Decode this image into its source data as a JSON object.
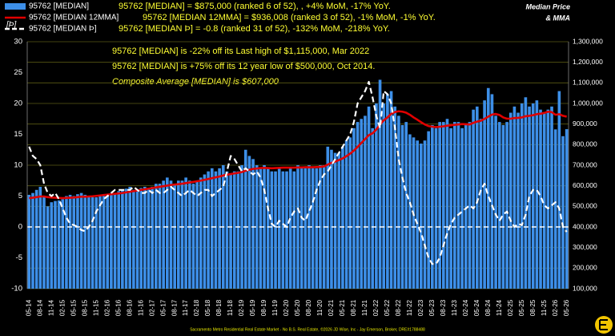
{
  "chart_data": {
    "type": "bar",
    "title": [
      "Median Price",
      "& MMA"
    ],
    "y_label": "[Þ]",
    "series_notes": [
      "95762 [MEDIAN] = $875,000 (ranked 6 of 52), , +4% MoM, -17% YoY.",
      "95762 [MEDIAN 12MMA] = $936,008 (ranked 3 of 52),  -1% MoM, -1% YoY.",
      "95762 [MEDIAN Þ] = -0.8 (ranked 31 of 52), -132% MoM, -218% YoY."
    ],
    "annotations": [
      "95762 [MEDIAN] is -22% off its Last high of $1,115,000, Mar 2022",
      "95762 [MEDIAN] is +75% off its 12 year low of $500,000, Oct 2014.",
      "Composite Average [MEDIAN] is $607,000"
    ],
    "footer": "Sacramento Metro Residential Real Estate Market - No B.S. Real Estate, ©2026 JD Wise, Inc - Jay Emerson, Broker, DRE#1788488",
    "categories": [
      "05-14",
      null,
      null,
      "08-14",
      null,
      null,
      "11-14",
      null,
      null,
      "02-15",
      null,
      null,
      "05-15",
      null,
      null,
      "08-15",
      null,
      null,
      "11-15",
      null,
      null,
      "02-16",
      null,
      null,
      "05-16",
      null,
      null,
      "08-16",
      null,
      null,
      "11-16",
      null,
      null,
      "02-17",
      null,
      null,
      "05-17",
      null,
      null,
      "08-17",
      null,
      null,
      "11-17",
      null,
      null,
      "02-18",
      null,
      null,
      "05-18",
      null,
      null,
      "08-18",
      null,
      null,
      "11-18",
      null,
      null,
      "02-19",
      null,
      null,
      "05-19",
      null,
      null,
      "08-19",
      null,
      null,
      "11-19",
      null,
      null,
      "02-20",
      null,
      null,
      "05-20",
      null,
      null,
      "08-20",
      null,
      null,
      "11-20",
      null,
      null,
      "02-21",
      null,
      null,
      "05-21",
      null,
      null,
      "08-21",
      null,
      null,
      "11-21",
      null,
      null,
      "02-22",
      null,
      null,
      "05-22",
      null,
      null,
      "08-22",
      null,
      null,
      "11-22",
      null,
      null,
      "02-23",
      null,
      null,
      "05-23",
      null,
      null,
      "08-23",
      null,
      null,
      "11-23",
      null,
      null,
      "02-24",
      null,
      null,
      "05-24",
      null,
      null,
      "08-24",
      null,
      null,
      "11-24",
      null,
      null,
      "02-25",
      null,
      null,
      "05-25",
      null,
      null,
      "08-25",
      null,
      null,
      "11-25",
      null,
      null,
      "02-26",
      null,
      null,
      "05-26"
    ],
    "series": [
      {
        "name": "95762 [MEDIAN]",
        "type": "bar",
        "axis": "y2",
        "color": "#3d8fe8",
        "values": [
          556000,
          565000,
          580000,
          595000,
          550000,
          500000,
          520000,
          526000,
          529000,
          535000,
          550000,
          556000,
          550000,
          559000,
          565000,
          556000,
          550000,
          544000,
          544000,
          550000,
          550000,
          559000,
          565000,
          565000,
          574000,
          580000,
          586000,
          595000,
          580000,
          580000,
          589000,
          595000,
          589000,
          595000,
          610000,
          610000,
          625000,
          640000,
          625000,
          610000,
          625000,
          625000,
          640000,
          625000,
          610000,
          625000,
          640000,
          655000,
          670000,
          685000,
          670000,
          685000,
          700000,
          670000,
          655000,
          670000,
          670000,
          700000,
          775000,
          745000,
          730000,
          700000,
          685000,
          700000,
          685000,
          670000,
          670000,
          685000,
          670000,
          670000,
          685000,
          670000,
          700000,
          685000,
          685000,
          700000,
          685000,
          685000,
          700000,
          700000,
          790000,
          775000,
          760000,
          760000,
          790000,
          820000,
          835000,
          880000,
          910000,
          925000,
          940000,
          985000,
          880000,
          1000000,
          1115000,
          1000000,
          1045000,
          1060000,
          985000,
          940000,
          895000,
          910000,
          850000,
          835000,
          820000,
          805000,
          820000,
          865000,
          895000,
          880000,
          910000,
          910000,
          925000,
          880000,
          910000,
          910000,
          880000,
          895000,
          910000,
          970000,
          985000,
          925000,
          1015000,
          1075000,
          1045000,
          940000,
          910000,
          895000,
          910000,
          955000,
          985000,
          955000,
          1000000,
          1030000,
          985000,
          1000000,
          1015000,
          970000,
          955000,
          970000,
          985000,
          874000,
          1060000,
          841000,
          875000
        ]
      },
      {
        "name": "95762 [MEDIAN 12MMA]",
        "type": "line",
        "axis": "y2",
        "color": "#e00000",
        "values": [
          540000,
          542000,
          545000,
          548000,
          548000,
          545000,
          543000,
          542000,
          541000,
          540000,
          541000,
          542000,
          543000,
          545000,
          547000,
          547000,
          548000,
          549000,
          551000,
          553000,
          555000,
          557000,
          559000,
          561000,
          563000,
          565000,
          568000,
          571000,
          574000,
          577000,
          580000,
          583000,
          586000,
          589000,
          592000,
          595000,
          598000,
          601000,
          604000,
          606000,
          608000,
          610000,
          613000,
          616000,
          619000,
          622000,
          625000,
          629000,
          633000,
          637000,
          641000,
          645000,
          650000,
          654000,
          657000,
          660000,
          663000,
          667000,
          673000,
          678000,
          682000,
          684000,
          686000,
          687000,
          686000,
          685000,
          686000,
          687000,
          688000,
          688000,
          688000,
          688000,
          689000,
          689000,
          690000,
          690000,
          690000,
          691000,
          692000,
          694000,
          703000,
          711000,
          718000,
          725000,
          733000,
          744000,
          756000,
          771000,
          789000,
          808000,
          827000,
          846000,
          855000,
          873000,
          898000,
          918000,
          932000,
          950000,
          958000,
          962000,
          960000,
          955000,
          945000,
          932000,
          921000,
          909000,
          898000,
          890000,
          887000,
          885000,
          887000,
          889000,
          892000,
          894000,
          896000,
          898000,
          900000,
          899000,
          898000,
          906000,
          912000,
          916000,
          925000,
          936000,
          946000,
          949000,
          944000,
          932000,
          926000,
          926000,
          929000,
          930000,
          932000,
          938000,
          940000,
          943000,
          948000,
          950000,
          954000,
          960000,
          958000,
          945000,
          948000,
          940000,
          936008
        ]
      },
      {
        "name": "95762 [MEDIAN Þ]",
        "type": "line",
        "axis": "y",
        "color": "#ffffff",
        "dashed": true,
        "values": [
          13,
          11.5,
          11,
          10,
          7,
          5.5,
          5,
          5.5,
          4.5,
          3,
          1.5,
          0.5,
          0.3,
          0,
          -0.5,
          -0.7,
          0,
          1,
          2.5,
          3.5,
          4.5,
          5,
          5.5,
          6,
          6,
          6,
          6,
          6,
          6.5,
          6,
          5.5,
          5.5,
          6,
          5.5,
          6,
          5.5,
          5.5,
          6,
          6.5,
          6,
          5.5,
          5,
          5.5,
          6,
          5.5,
          5,
          5.5,
          6,
          6,
          5,
          5.5,
          6,
          6.5,
          9,
          11.5,
          11,
          10,
          9,
          9.5,
          9,
          8.5,
          9,
          8,
          6,
          3,
          0.5,
          0,
          1,
          0.5,
          0,
          1.5,
          2.5,
          3,
          1.5,
          1,
          2.5,
          4,
          6,
          7.5,
          8.5,
          9,
          10,
          11,
          12,
          13,
          14,
          15,
          17,
          20,
          21,
          22,
          23.5,
          21,
          18,
          16,
          22,
          21.5,
          20,
          16,
          11,
          8,
          5.5,
          4,
          2,
          0.5,
          -1,
          -3,
          -5,
          -6,
          -6,
          -5,
          -3,
          -1,
          0.5,
          1.5,
          2,
          2.5,
          3,
          3.5,
          3,
          4,
          6,
          7,
          5,
          3.5,
          2,
          1,
          2,
          2.5,
          1,
          0,
          0.5,
          0.3,
          2,
          5,
          6,
          6,
          5,
          3.5,
          3,
          3.5,
          4,
          3,
          0,
          -0.8
        ]
      }
    ],
    "ylim": [
      -10,
      30
    ],
    "yticks": [
      -10,
      -5,
      0,
      5,
      10,
      15,
      20,
      25,
      30
    ],
    "y2lim": [
      100000,
      1300000
    ],
    "y2ticks": [
      {
        "value": 100000,
        "label": "100,000"
      },
      {
        "value": 200000,
        "label": "200,000"
      },
      {
        "value": 300000,
        "label": "300,000"
      },
      {
        "value": 400000,
        "label": "400,000"
      },
      {
        "value": 500000,
        "label": "500,000"
      },
      {
        "value": 600000,
        "label": "600,000"
      },
      {
        "value": 700000,
        "label": "700,000"
      },
      {
        "value": 800000,
        "label": "800,000"
      },
      {
        "value": 900000,
        "label": "900,000"
      },
      {
        "value": 1000000,
        "label": "1,000,000"
      },
      {
        "value": 1100000,
        "label": "1,100,000"
      },
      {
        "value": 1200000,
        "label": "1,200,000"
      },
      {
        "value": 1300000,
        "label": "1,300,000"
      }
    ],
    "grid": true,
    "zero_line": true
  }
}
